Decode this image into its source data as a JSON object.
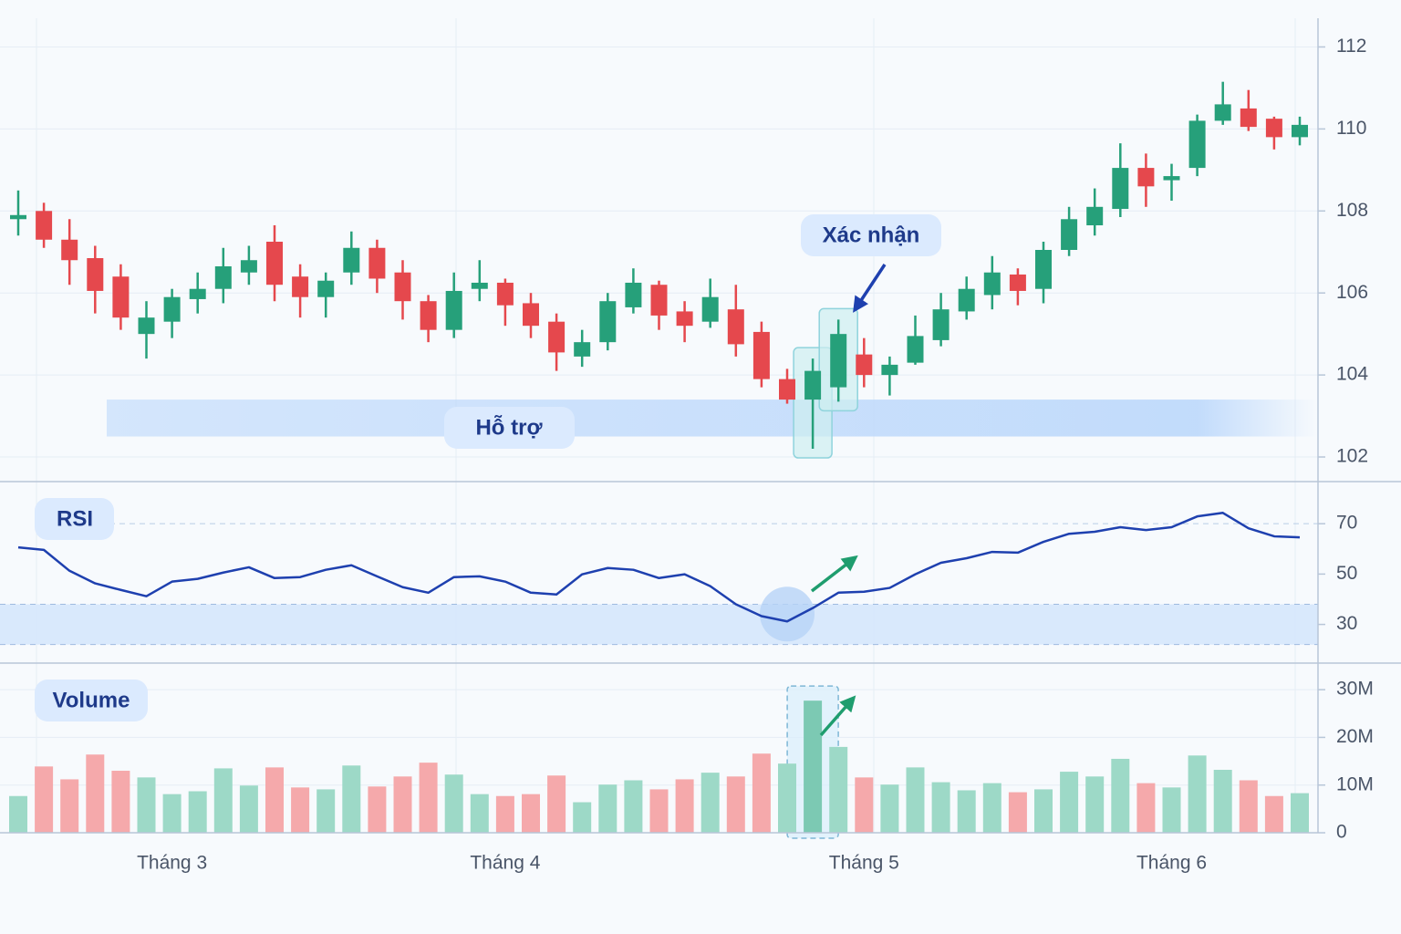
{
  "chart_data": [
    {
      "type": "candlestick",
      "open": [
        107.8,
        108.0,
        107.3,
        106.85,
        106.4,
        105.0,
        105.3,
        105.85,
        106.1,
        106.5,
        107.25,
        106.4,
        105.9,
        106.5,
        107.1,
        106.5,
        105.8,
        105.1,
        106.1,
        106.25,
        105.75,
        105.3,
        104.45,
        104.8,
        105.65,
        106.2,
        105.55,
        105.3,
        105.6,
        105.05,
        103.9,
        103.4,
        103.7,
        104.5,
        104.0,
        104.3,
        104.85,
        105.55,
        105.95,
        106.45,
        106.1,
        107.05,
        107.65,
        108.05,
        109.05,
        108.75,
        109.05,
        110.2,
        110.5,
        110.25,
        109.8
      ],
      "high": [
        108.5,
        108.2,
        107.8,
        107.15,
        106.7,
        105.8,
        106.1,
        106.5,
        107.1,
        107.15,
        107.65,
        106.7,
        106.5,
        107.5,
        107.3,
        106.8,
        105.95,
        106.5,
        106.8,
        106.35,
        106.0,
        105.5,
        105.1,
        106.0,
        106.6,
        106.3,
        105.8,
        106.35,
        106.2,
        105.3,
        104.15,
        104.4,
        105.35,
        104.9,
        104.45,
        105.45,
        106.0,
        106.4,
        106.9,
        106.6,
        107.25,
        108.1,
        108.55,
        109.65,
        109.4,
        109.15,
        110.35,
        111.15,
        110.95,
        110.3,
        110.3
      ],
      "low": [
        107.4,
        107.1,
        106.2,
        105.5,
        105.1,
        104.4,
        104.9,
        105.5,
        105.75,
        106.2,
        105.8,
        105.4,
        105.4,
        106.2,
        106.0,
        105.35,
        104.8,
        104.9,
        105.8,
        105.2,
        104.9,
        104.1,
        104.2,
        104.6,
        105.5,
        105.1,
        104.8,
        105.15,
        104.45,
        103.7,
        103.3,
        102.2,
        103.35,
        103.7,
        103.5,
        104.25,
        104.7,
        105.35,
        105.6,
        105.7,
        105.75,
        106.9,
        107.4,
        107.85,
        108.1,
        108.25,
        108.85,
        110.1,
        109.95,
        109.5,
        109.6
      ],
      "close": [
        107.9,
        107.3,
        106.8,
        106.05,
        105.4,
        105.4,
        105.9,
        106.1,
        106.65,
        106.8,
        106.2,
        105.9,
        106.3,
        107.1,
        106.35,
        105.8,
        105.1,
        106.05,
        106.25,
        105.7,
        105.2,
        104.55,
        104.8,
        105.8,
        106.25,
        105.45,
        105.2,
        105.9,
        104.75,
        103.9,
        103.4,
        104.1,
        105.0,
        104.0,
        104.25,
        104.95,
        105.6,
        106.1,
        106.5,
        106.05,
        107.05,
        107.8,
        108.1,
        109.05,
        108.6,
        108.85,
        110.2,
        110.6,
        110.05,
        109.8,
        110.1
      ],
      "up_color": "#26a07a",
      "down_color": "#e5484d",
      "ylim": [
        101.4,
        112.7
      ],
      "yticks": [
        102,
        104,
        106,
        108,
        110,
        112
      ],
      "grid": true,
      "support_band": [
        102.5,
        103.4
      ],
      "support_label": "Hỗ trợ",
      "confirm_label": "Xác nhận"
    },
    {
      "type": "line",
      "title": "RSI",
      "color": "#1e40af",
      "values": [
        60.6,
        59.6,
        51.3,
        46.3,
        43.7,
        41.2,
        47.0,
        48.1,
        50.6,
        52.7,
        48.4,
        48.8,
        51.7,
        53.5,
        49.1,
        44.8,
        42.6,
        48.8,
        49.1,
        47.0,
        42.6,
        41.9,
        49.9,
        52.4,
        51.7,
        48.4,
        49.9,
        45.2,
        38.0,
        33.3,
        31.2,
        36.5,
        42.6,
        43.0,
        44.5,
        49.9,
        54.5,
        56.3,
        58.8,
        58.5,
        62.8,
        66.0,
        66.8,
        68.6,
        67.5,
        68.6,
        72.9,
        74.3,
        68.2,
        65.0,
        64.6
      ],
      "ylim": [
        15,
        86
      ],
      "yticks": [
        30,
        50,
        70
      ],
      "oversold_band": [
        22,
        38
      ]
    },
    {
      "type": "bar",
      "title": "Volume",
      "categories": [
        null,
        null,
        null,
        null,
        null,
        null,
        "Tháng 3",
        null,
        null,
        null,
        null,
        null,
        null,
        null,
        null,
        null,
        null,
        null,
        null,
        "Tháng 4",
        null,
        null,
        null,
        null,
        null,
        null,
        null,
        null,
        null,
        null,
        null,
        null,
        null,
        "Tháng 5",
        null,
        null,
        null,
        null,
        null,
        null,
        null,
        null,
        null,
        null,
        null,
        "Tháng 6",
        null,
        null,
        null,
        null,
        null
      ],
      "values": [
        7700000,
        13900000,
        11200000,
        16400000,
        13000000,
        11600000,
        8100000,
        8700000,
        13500000,
        9900000,
        13700000,
        9500000,
        9100000,
        14100000,
        9700000,
        11800000,
        14700000,
        12200000,
        8100000,
        7700000,
        8100000,
        12000000,
        6400000,
        10100000,
        11000000,
        9100000,
        11200000,
        12600000,
        11800000,
        16600000,
        14500000,
        27700000,
        18000000,
        11600000,
        10100000,
        13700000,
        10600000,
        8900000,
        10400000,
        8500000,
        9100000,
        12800000,
        11800000,
        15500000,
        10400000,
        9500000,
        16200000,
        13200000,
        11000000,
        7700000,
        8300000
      ],
      "colors": [
        "#9dd9c7",
        "#f5a9ab",
        "#f5a9ab",
        "#f5a9ab",
        "#f5a9ab",
        "#9dd9c7",
        "#9dd9c7",
        "#9dd9c7",
        "#9dd9c7",
        "#9dd9c7",
        "#f5a9ab",
        "#f5a9ab",
        "#9dd9c7",
        "#9dd9c7",
        "#f5a9ab",
        "#f5a9ab",
        "#f5a9ab",
        "#9dd9c7",
        "#9dd9c7",
        "#f5a9ab",
        "#f5a9ab",
        "#f5a9ab",
        "#9dd9c7",
        "#9dd9c7",
        "#9dd9c7",
        "#f5a9ab",
        "#f5a9ab",
        "#9dd9c7",
        "#f5a9ab",
        "#f5a9ab",
        "#9dd9c7",
        "#7cc9b3",
        "#9dd9c7",
        "#f5a9ab",
        "#9dd9c7",
        "#9dd9c7",
        "#9dd9c7",
        "#9dd9c7",
        "#9dd9c7",
        "#f5a9ab",
        "#9dd9c7",
        "#9dd9c7",
        "#9dd9c7",
        "#9dd9c7",
        "#f5a9ab",
        "#9dd9c7",
        "#9dd9c7",
        "#9dd9c7",
        "#f5a9ab",
        "#f5a9ab",
        "#9dd9c7"
      ],
      "ylim": [
        0,
        35000000
      ],
      "yticks": [
        0,
        {
          "value": 10000000,
          "label": "10M"
        },
        {
          "value": 20000000,
          "label": "20M"
        },
        {
          "value": 30000000,
          "label": "30M"
        }
      ]
    }
  ]
}
